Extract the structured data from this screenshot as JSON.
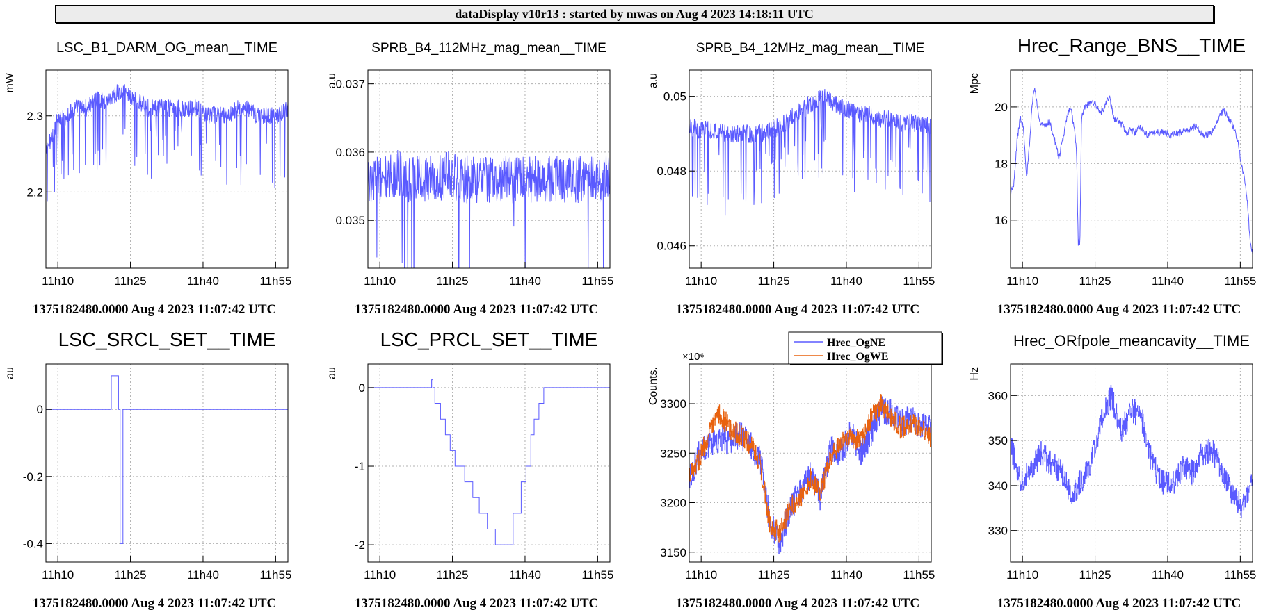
{
  "header": {
    "title": "dataDisplay v10r13 : started by mwas on Aug  4 2023 14:18:11 UTC"
  },
  "colors": {
    "series_blue": "#5a5aff",
    "series_orange": "#e8620f",
    "grid": "#b0b0b0",
    "axis": "#000000"
  },
  "chart_data": [
    {
      "type": "line",
      "title": "LSC_B1_DARM_OG_mean__TIME",
      "ylabel": "mW",
      "footer": "1375182480.0000 Aug 4 2023 11:07:42 UTC",
      "ylim": [
        2.1,
        2.36
      ],
      "yticks": [
        2.2,
        2.3
      ],
      "ytick_labels": [
        "2.2",
        "2.3"
      ],
      "xlim": [
        0,
        3000
      ],
      "xticks": [
        148,
        1048,
        1948,
        2848
      ],
      "xtick_labels": [
        "11h10",
        "11h25",
        "11h40",
        "11h55"
      ],
      "series": [
        {
          "color": "#5a5aff",
          "noise": 0.012,
          "spikes": 0.1,
          "values": [
            2.25,
            2.29,
            2.3,
            2.31,
            2.31,
            2.32,
            2.32,
            2.33,
            2.33,
            2.32,
            2.31,
            2.31,
            2.31,
            2.31,
            2.31,
            2.31,
            2.3,
            2.3,
            2.3,
            2.31,
            2.31,
            2.3,
            2.3,
            2.3,
            2.31
          ]
        }
      ]
    },
    {
      "type": "line",
      "title": "SPRB_B4_112MHz_mag_mean__TIME",
      "ylabel": "a.u",
      "footer": "1375182480.0000 Aug 4 2023 11:07:42 UTC",
      "ylim": [
        0.0343,
        0.0372
      ],
      "yticks": [
        0.035,
        0.036,
        0.037
      ],
      "ytick_labels": [
        "0.035",
        "0.036",
        "0.037"
      ],
      "xlim": [
        0,
        3000
      ],
      "xticks": [
        148,
        1048,
        1948,
        2848
      ],
      "xtick_labels": [
        "11h10",
        "11h25",
        "11h40",
        "11h55"
      ],
      "series": [
        {
          "color": "#5a5aff",
          "noise": 0.00035,
          "spikes": 0.02,
          "values": [
            0.0356,
            0.0356,
            0.0356,
            0.0357,
            0.0356,
            0.0356,
            0.0356,
            0.0356,
            0.0357,
            0.0356,
            0.0356,
            0.0356,
            0.0356,
            0.0356,
            0.0356,
            0.0356,
            0.0356,
            0.0356,
            0.0356,
            0.0356,
            0.0356,
            0.0356,
            0.0356,
            0.0356,
            0.0357
          ]
        }
      ]
    },
    {
      "type": "line",
      "title": "SPRB_B4_12MHz_mag_mean__TIME",
      "ylabel": "a.u",
      "footer": "1375182480.0000 Aug 4 2023 11:07:42 UTC",
      "ylim": [
        0.0454,
        0.0507
      ],
      "yticks": [
        0.046,
        0.048,
        0.05
      ],
      "ytick_labels": [
        "0.046",
        "0.048",
        "0.05"
      ],
      "xlim": [
        0,
        3000
      ],
      "xticks": [
        148,
        1048,
        1948,
        2848
      ],
      "xtick_labels": [
        "11h10",
        "11h25",
        "11h40",
        "11h55"
      ],
      "series": [
        {
          "color": "#5a5aff",
          "noise": 0.00025,
          "spikes": 0.1,
          "values": [
            0.0492,
            0.0491,
            0.0491,
            0.049,
            0.049,
            0.049,
            0.049,
            0.049,
            0.0491,
            0.0492,
            0.0494,
            0.0496,
            0.0498,
            0.05,
            0.0499,
            0.0497,
            0.0496,
            0.0495,
            0.0495,
            0.0494,
            0.0494,
            0.0493,
            0.0493,
            0.0492,
            0.0492
          ]
        }
      ]
    },
    {
      "type": "line",
      "title": "Hrec_Range_BNS__TIME",
      "ylabel": "Mpc",
      "footer": "1375182480.0000 Aug 4 2023 11:07:42 UTC",
      "ylim": [
        14.3,
        21.3
      ],
      "yticks": [
        16,
        18,
        20
      ],
      "ytick_labels": [
        "16",
        "18",
        "20"
      ],
      "xlim": [
        0,
        3000
      ],
      "xticks": [
        148,
        1048,
        1948,
        2848
      ],
      "xtick_labels": [
        "11h10",
        "11h25",
        "11h40",
        "11h55"
      ],
      "series": [
        {
          "color": "#5a5aff",
          "noise": 0.12,
          "spikes": 0.0,
          "x": [
            0,
            40,
            80,
            120,
            160,
            200,
            240,
            270,
            300,
            340,
            380,
            430,
            480,
            540,
            600,
            660,
            700,
            730,
            760,
            790,
            820,
            830,
            840,
            850,
            860,
            880,
            920,
            980,
            1040,
            1100,
            1160,
            1220,
            1280,
            1340,
            1400,
            1440,
            1480,
            1540,
            1600,
            1700,
            1800,
            1900,
            2000,
            2100,
            2200,
            2300,
            2400,
            2500,
            2580,
            2640,
            2700,
            2760,
            2820,
            2860,
            2900,
            2940,
            2970,
            3000
          ],
          "values": [
            17.0,
            17.2,
            18.8,
            19.6,
            19.3,
            17.5,
            18.8,
            20.2,
            20.7,
            19.8,
            19.4,
            19.3,
            19.5,
            18.9,
            18.2,
            19.0,
            19.7,
            19.9,
            19.8,
            19.2,
            18.3,
            16.5,
            15.2,
            15.3,
            15.1,
            19.6,
            20.0,
            20.1,
            20.2,
            19.8,
            19.9,
            20.4,
            19.6,
            19.5,
            19.3,
            19.0,
            19.2,
            19.1,
            19.3,
            19.0,
            19.1,
            19.1,
            19.0,
            19.1,
            19.2,
            19.3,
            19.0,
            19.1,
            19.6,
            19.9,
            19.6,
            19.3,
            18.8,
            18.0,
            17.5,
            16.5,
            15.2,
            14.8
          ]
        }
      ]
    },
    {
      "type": "line",
      "title": "LSC_SRCL_SET__TIME",
      "ylabel": "au",
      "footer": "1375182480.0000 Aug 4 2023 11:07:42 UTC",
      "ylim": [
        -0.455,
        0.135
      ],
      "yticks": [
        -0.4,
        -0.2,
        0
      ],
      "ytick_labels": [
        "-0.4",
        "-0.2",
        "0"
      ],
      "xlim": [
        0,
        3000
      ],
      "xticks": [
        148,
        1048,
        1948,
        2848
      ],
      "xtick_labels": [
        "11h10",
        "11h25",
        "11h40",
        "11h55"
      ],
      "series": [
        {
          "color": "#5a5aff",
          "noise": 0,
          "spikes": 0,
          "step": true,
          "x": [
            0,
            810,
            830,
            900,
            920,
            935,
            945,
            955,
            3000
          ],
          "values": [
            0,
            0.1,
            0.1,
            0.0,
            -0.4,
            -0.4,
            -0.4,
            0,
            0
          ]
        }
      ]
    },
    {
      "type": "line",
      "title": "LSC_PRCL_SET__TIME",
      "ylabel": "au",
      "footer": "1375182480.0000 Aug 4 2023 11:07:42 UTC",
      "ylim": [
        -2.22,
        0.3
      ],
      "yticks": [
        -2,
        -1,
        0
      ],
      "ytick_labels": [
        "-2",
        "-1",
        "0"
      ],
      "xlim": [
        0,
        3000
      ],
      "xticks": [
        148,
        1048,
        1948,
        2848
      ],
      "xtick_labels": [
        "11h10",
        "11h25",
        "11h40",
        "11h55"
      ],
      "series": [
        {
          "color": "#5a5aff",
          "noise": 0,
          "spikes": 0,
          "step": true,
          "x": [
            0,
            790,
            805,
            830,
            900,
            960,
            1020,
            1080,
            1200,
            1300,
            1380,
            1480,
            1580,
            1680,
            1760,
            1800,
            1900,
            1960,
            2020,
            2060,
            2120,
            2180,
            3000
          ],
          "values": [
            0,
            0.1,
            0,
            -0.2,
            -0.4,
            -0.6,
            -0.8,
            -1.0,
            -1.2,
            -1.4,
            -1.6,
            -1.8,
            -2.0,
            -2.0,
            -2.0,
            -1.6,
            -1.2,
            -1.0,
            -0.6,
            -0.4,
            -0.2,
            0,
            0
          ]
        }
      ]
    },
    {
      "type": "line",
      "title": "",
      "ylabel": "Counts.",
      "exponent": "×10⁶",
      "footer": "1375182480.0000 Aug 4 2023 11:07:42 UTC",
      "ylim": [
        3140,
        3340
      ],
      "yticks": [
        3150,
        3200,
        3250,
        3300
      ],
      "ytick_labels": [
        "3150",
        "3200",
        "3250",
        "3300"
      ],
      "xlim": [
        0,
        3000
      ],
      "xticks": [
        148,
        1048,
        1948,
        2848
      ],
      "xtick_labels": [
        "11h10",
        "11h25",
        "11h40",
        "11h55"
      ],
      "legend": [
        "Hrec_OgNE",
        "Hrec_OgWE"
      ],
      "series": [
        {
          "name": "Hrec_OgNE",
          "color": "#5a5aff",
          "noise": 14,
          "spikes": 0,
          "step": true,
          "values": [
            3225,
            3250,
            3260,
            3265,
            3262,
            3270,
            3258,
            3245,
            3180,
            3160,
            3195,
            3210,
            3230,
            3205,
            3255,
            3250,
            3270,
            3250,
            3270,
            3295,
            3290,
            3280,
            3285,
            3278,
            3275
          ]
        },
        {
          "name": "Hrec_OgWE",
          "color": "#e8620f",
          "noise": 11,
          "spikes": 0,
          "step": true,
          "values": [
            3230,
            3245,
            3270,
            3290,
            3275,
            3268,
            3260,
            3240,
            3175,
            3170,
            3195,
            3205,
            3225,
            3210,
            3245,
            3260,
            3265,
            3262,
            3285,
            3300,
            3285,
            3275,
            3280,
            3275,
            3265
          ]
        }
      ]
    },
    {
      "type": "line",
      "title": "Hrec_ORfpole_meancavity__TIME",
      "ylabel": "Hz",
      "footer": "1375182480.0000 Aug 4 2023 11:07:42 UTC",
      "ylim": [
        323,
        367
      ],
      "yticks": [
        330,
        340,
        350,
        360
      ],
      "ytick_labels": [
        "330",
        "340",
        "350",
        "360"
      ],
      "xlim": [
        0,
        3000
      ],
      "xticks": [
        148,
        1048,
        1948,
        2848
      ],
      "xtick_labels": [
        "11h10",
        "11h25",
        "11h40",
        "11h55"
      ],
      "series": [
        {
          "color": "#5a5aff",
          "noise": 2.8,
          "spikes": 0,
          "step": true,
          "values": [
            349,
            341,
            344,
            347,
            345,
            343,
            338,
            341,
            345,
            355,
            360,
            352,
            357,
            355,
            345,
            341,
            340,
            344,
            343,
            347,
            348,
            343,
            338,
            335,
            342
          ]
        }
      ]
    }
  ]
}
